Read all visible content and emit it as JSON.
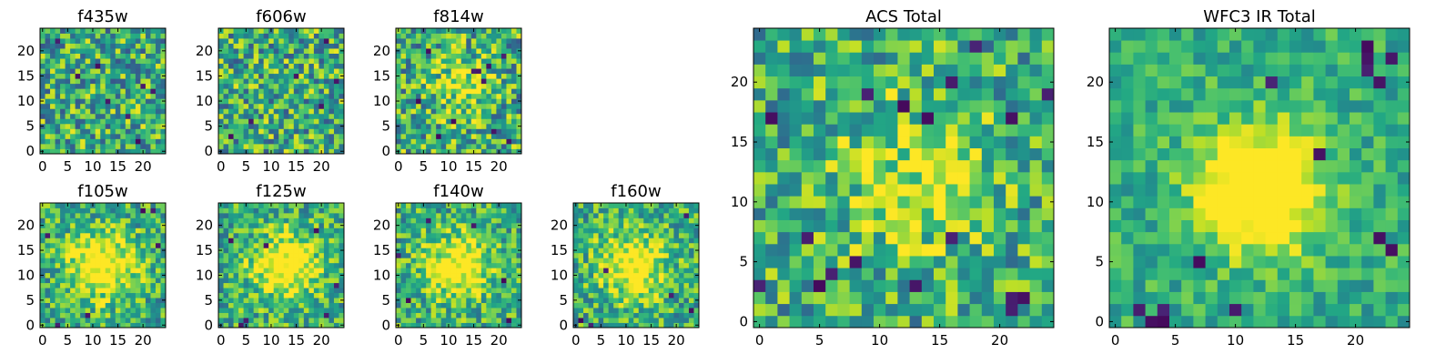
{
  "chart_data": [
    {
      "type": "heatmap",
      "title": "f435w",
      "colormap": "viridis",
      "xlim": [
        -0.5,
        24.5
      ],
      "ylim": [
        -0.5,
        24.5
      ],
      "xticks": [
        0,
        5,
        10,
        15,
        20
      ],
      "yticks": [
        0,
        5,
        10,
        15,
        20
      ],
      "grid": false,
      "source_size": 25,
      "peak": null,
      "sigma": 0,
      "amplitude": 0.0,
      "noise": 0.7,
      "seed": 11,
      "dark_pixels": [
        [
          3,
          22
        ],
        [
          17,
          7
        ],
        [
          11,
          17
        ],
        [
          19,
          2
        ],
        [
          20,
          13
        ],
        [
          13,
          10
        ],
        [
          7,
          15
        ],
        [
          22,
          12
        ]
      ]
    },
    {
      "type": "heatmap",
      "title": "f606w",
      "colormap": "viridis",
      "xlim": [
        -0.5,
        24.5
      ],
      "ylim": [
        -0.5,
        24.5
      ],
      "xticks": [
        0,
        5,
        10,
        15,
        20
      ],
      "yticks": [
        0,
        5,
        10,
        15,
        20
      ],
      "grid": false,
      "source_size": 25,
      "peak": null,
      "sigma": 0,
      "amplitude": 0.0,
      "noise": 0.7,
      "seed": 23,
      "dark_pixels": [
        [
          21,
          22
        ],
        [
          6,
          6
        ],
        [
          15,
          15
        ],
        [
          20,
          9
        ],
        [
          2,
          3
        ],
        [
          23,
          14
        ]
      ]
    },
    {
      "type": "heatmap",
      "title": "f814w",
      "colormap": "viridis",
      "xlim": [
        -0.5,
        24.5
      ],
      "ylim": [
        -0.5,
        24.5
      ],
      "xticks": [
        0,
        5,
        10,
        15,
        20
      ],
      "yticks": [
        0,
        5,
        10,
        15,
        20
      ],
      "grid": false,
      "source_size": 25,
      "peak": [
        13,
        13
      ],
      "sigma": 4.0,
      "amplitude": 0.3,
      "noise": 0.7,
      "seed": 37,
      "dark_pixels": [
        [
          16,
          16
        ],
        [
          17,
          14
        ],
        [
          15,
          16
        ],
        [
          6,
          20
        ],
        [
          19,
          4
        ],
        [
          22,
          2
        ],
        [
          11,
          6
        ],
        [
          4,
          10
        ],
        [
          21,
          19
        ],
        [
          8,
          3
        ],
        [
          18,
          17
        ]
      ]
    },
    {
      "type": "heatmap",
      "title": "f105w",
      "colormap": "viridis",
      "xlim": [
        -0.5,
        24.5
      ],
      "ylim": [
        -0.5,
        24.5
      ],
      "xticks": [
        0,
        5,
        10,
        15,
        20
      ],
      "yticks": [
        0,
        5,
        10,
        15,
        20
      ],
      "grid": false,
      "source_size": 25,
      "peak": [
        12,
        12
      ],
      "sigma": 4.5,
      "amplitude": 0.55,
      "noise": 0.55,
      "seed": 41,
      "dark_pixels": [
        [
          20,
          23
        ],
        [
          22,
          23
        ],
        [
          1,
          18
        ],
        [
          9,
          2
        ],
        [
          3,
          0
        ],
        [
          23,
          16
        ]
      ]
    },
    {
      "type": "heatmap",
      "title": "f125w",
      "colormap": "viridis",
      "xlim": [
        -0.5,
        24.5
      ],
      "ylim": [
        -0.5,
        24.5
      ],
      "xticks": [
        0,
        5,
        10,
        15,
        20
      ],
      "yticks": [
        0,
        5,
        10,
        15,
        20
      ],
      "grid": false,
      "source_size": 25,
      "peak": [
        13,
        12
      ],
      "sigma": 4.5,
      "amplitude": 0.55,
      "noise": 0.55,
      "seed": 53,
      "dark_pixels": [
        [
          9,
          16
        ],
        [
          5,
          1
        ],
        [
          19,
          19
        ],
        [
          21,
          2
        ],
        [
          2,
          17
        ],
        [
          23,
          8
        ],
        [
          4,
          0
        ]
      ]
    },
    {
      "type": "heatmap",
      "title": "f140w",
      "colormap": "viridis",
      "xlim": [
        -0.5,
        24.5
      ],
      "ylim": [
        -0.5,
        24.5
      ],
      "xticks": [
        0,
        5,
        10,
        15,
        20
      ],
      "yticks": [
        0,
        5,
        10,
        15,
        20
      ],
      "grid": false,
      "source_size": 25,
      "peak": [
        12,
        12
      ],
      "sigma": 4.5,
      "amplitude": 0.5,
      "noise": 0.55,
      "seed": 67,
      "dark_pixels": [
        [
          2,
          5
        ],
        [
          21,
          9
        ],
        [
          15,
          20
        ],
        [
          6,
          21
        ],
        [
          22,
          1
        ],
        [
          0,
          14
        ]
      ]
    },
    {
      "type": "heatmap",
      "title": "f160w",
      "colormap": "viridis",
      "xlim": [
        -0.5,
        24.5
      ],
      "ylim": [
        -0.5,
        24.5
      ],
      "xticks": [
        0,
        5,
        10,
        15,
        20
      ],
      "yticks": [
        0,
        5,
        10,
        15,
        20
      ],
      "grid": false,
      "source_size": 25,
      "peak": [
        11,
        12
      ],
      "sigma": 4.5,
      "amplitude": 0.5,
      "noise": 0.55,
      "seed": 79,
      "dark_pixels": [
        [
          1,
          1
        ],
        [
          3,
          0
        ],
        [
          19,
          6
        ],
        [
          22,
          22
        ],
        [
          6,
          11
        ],
        [
          23,
          3
        ]
      ]
    },
    {
      "type": "heatmap",
      "title": "ACS Total",
      "colormap": "viridis",
      "xlim": [
        -0.5,
        24.5
      ],
      "ylim": [
        -0.5,
        24.5
      ],
      "xticks": [
        0,
        5,
        10,
        15,
        20
      ],
      "yticks": [
        0,
        5,
        10,
        15,
        20
      ],
      "grid": false,
      "source_size": 25,
      "peak": [
        13,
        12
      ],
      "sigma": 4.5,
      "amplitude": 0.3,
      "noise": 0.6,
      "seed": 97,
      "dark_pixels": [
        [
          18,
          23
        ],
        [
          9,
          19
        ],
        [
          1,
          17
        ],
        [
          14,
          17
        ],
        [
          21,
          17
        ],
        [
          6,
          4
        ],
        [
          5,
          3
        ],
        [
          21,
          2
        ],
        [
          22,
          2
        ],
        [
          21,
          1
        ],
        [
          8,
          5
        ],
        [
          13,
          3
        ],
        [
          4,
          7
        ],
        [
          16,
          20
        ],
        [
          12,
          18
        ],
        [
          24,
          19
        ],
        [
          16,
          7
        ],
        [
          0,
          3
        ]
      ]
    },
    {
      "type": "heatmap",
      "title": "WFC3 IR Total",
      "colormap": "viridis",
      "xlim": [
        -0.5,
        24.5
      ],
      "ylim": [
        -0.5,
        24.5
      ],
      "xticks": [
        0,
        5,
        10,
        15,
        20
      ],
      "yticks": [
        0,
        5,
        10,
        15,
        20
      ],
      "grid": false,
      "source_size": 25,
      "peak": [
        12,
        11
      ],
      "sigma": 3.6,
      "amplitude": 0.75,
      "noise": 0.35,
      "seed": 131,
      "dark_pixels": [
        [
          21,
          23
        ],
        [
          21,
          22
        ],
        [
          21,
          21
        ],
        [
          23,
          22
        ],
        [
          22,
          20
        ],
        [
          4,
          1
        ],
        [
          4,
          0
        ],
        [
          3,
          0
        ],
        [
          2,
          1
        ],
        [
          10,
          1
        ],
        [
          22,
          7
        ],
        [
          23,
          6
        ],
        [
          17,
          14
        ],
        [
          7,
          5
        ],
        [
          13,
          20
        ]
      ]
    }
  ]
}
